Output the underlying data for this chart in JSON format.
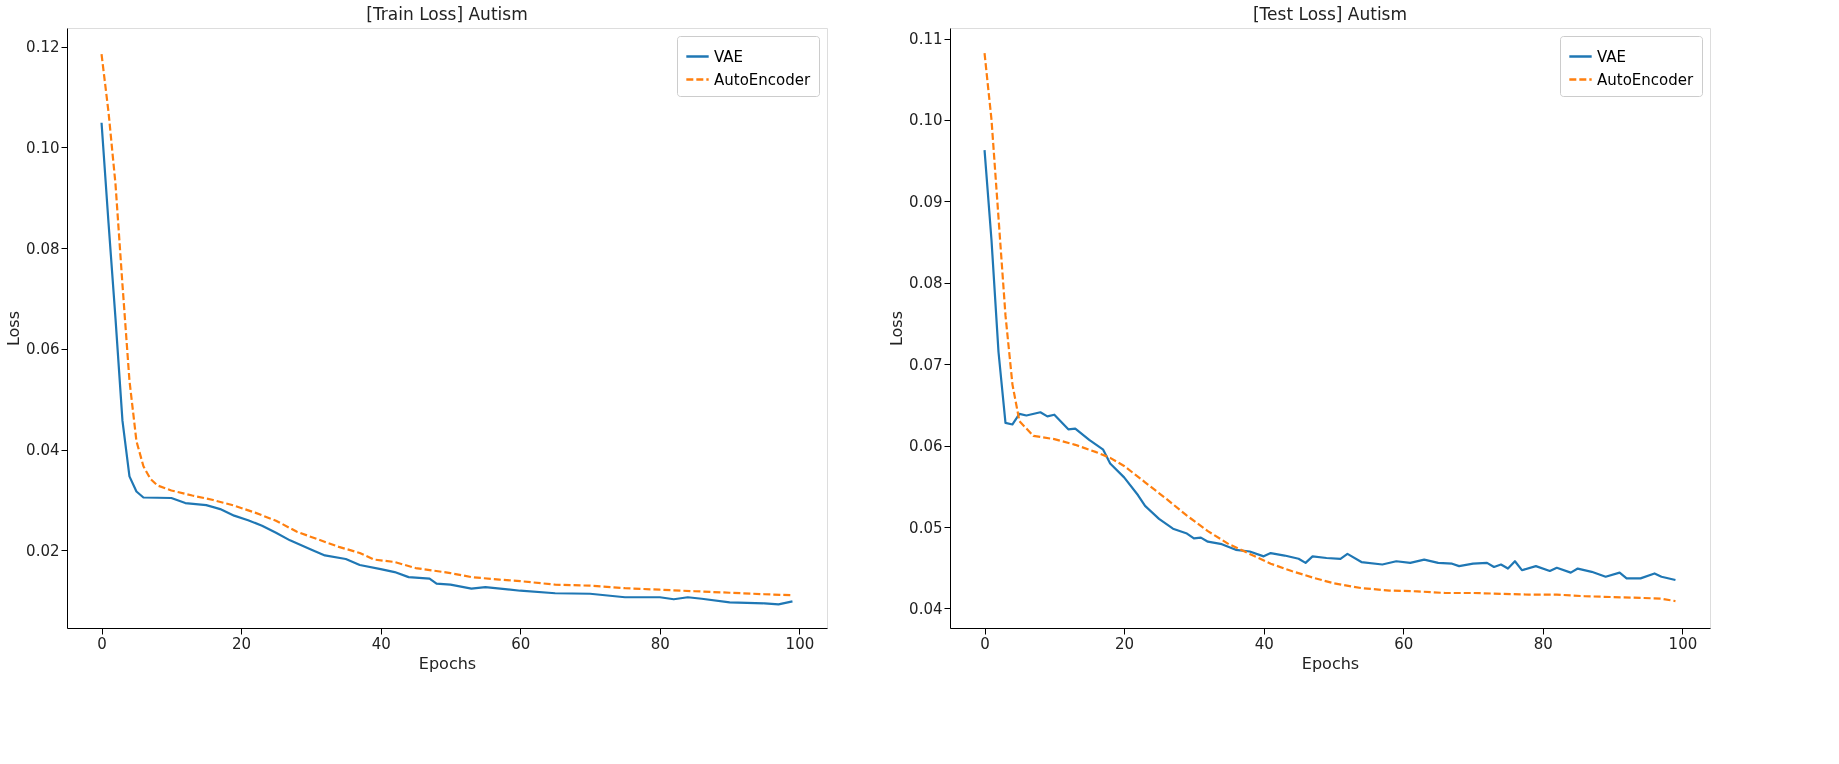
{
  "chart_data": [
    {
      "type": "line",
      "title": "[Train Loss] Autism",
      "xlabel": "Epochs",
      "ylabel": "Loss",
      "xlim": [
        -4.95,
        103.95
      ],
      "xticks": [
        0,
        20,
        40,
        60,
        80,
        100
      ],
      "ylim": [
        0.0046,
        0.1237
      ],
      "yticks": [
        0.02,
        0.04,
        0.06,
        0.08,
        {
          "value": 0.1,
          "label": "0.10"
        },
        0.12
      ],
      "grid": false,
      "legend": "top right",
      "series": [
        {
          "name": "VAE",
          "color": "#1f77b4",
          "line_style": "solid",
          "x": [
            0,
            1,
            2,
            3,
            4,
            5,
            6,
            10,
            12,
            15,
            17,
            19,
            21,
            23,
            25,
            27,
            30,
            32,
            35,
            37,
            40,
            42,
            44,
            47,
            48,
            50,
            53,
            55,
            60,
            65,
            70,
            75,
            80,
            82,
            84,
            86,
            90,
            95,
            97,
            99
          ],
          "values": [
            0.1049,
            0.085,
            0.066,
            0.0457,
            0.0347,
            0.0317,
            0.0305,
            0.0304,
            0.0294,
            0.029,
            0.0282,
            0.0269,
            0.026,
            0.0249,
            0.0235,
            0.022,
            0.0202,
            0.019,
            0.0183,
            0.0171,
            0.0163,
            0.0157,
            0.0147,
            0.0144,
            0.0134,
            0.0132,
            0.0124,
            0.0127,
            0.012,
            0.0115,
            0.0114,
            0.0107,
            0.0107,
            0.0103,
            0.0107,
            0.0104,
            0.0097,
            0.0095,
            0.0093,
            0.0099
          ]
        },
        {
          "name": "AutoEncoder",
          "color": "#ff7f0e",
          "line_style": "dashed",
          "x": [
            0,
            1,
            2,
            3,
            4,
            5,
            6,
            7,
            8,
            10,
            13,
            16,
            19,
            22,
            25,
            28,
            31,
            34,
            37,
            39,
            42,
            45,
            50,
            53,
            57,
            60,
            65,
            70,
            75,
            80,
            85,
            90,
            95,
            99
          ],
          "values": [
            0.1185,
            0.107,
            0.0927,
            0.0727,
            0.0537,
            0.0417,
            0.0367,
            0.0342,
            0.0329,
            0.0319,
            0.0309,
            0.03,
            0.0289,
            0.0275,
            0.0259,
            0.0237,
            0.0222,
            0.0207,
            0.0195,
            0.0182,
            0.0177,
            0.0165,
            0.0155,
            0.0147,
            0.0142,
            0.0139,
            0.0132,
            0.013,
            0.0125,
            0.0122,
            0.0119,
            0.0116,
            0.0113,
            0.0111
          ]
        }
      ]
    },
    {
      "type": "line",
      "title": "[Test Loss] Autism",
      "xlabel": "Epochs",
      "ylabel": "Loss",
      "xlim": [
        -4.95,
        103.95
      ],
      "xticks": [
        0,
        20,
        40,
        60,
        80,
        100
      ],
      "ylim": [
        0.0376,
        0.1113
      ],
      "yticks": [
        0.04,
        0.05,
        0.06,
        0.07,
        0.08,
        0.09,
        {
          "value": 0.1,
          "label": "0.10"
        },
        0.11
      ],
      "grid": false,
      "legend": "top right",
      "series": [
        {
          "name": "VAE",
          "color": "#1f77b4",
          "line_style": "solid",
          "x": [
            0,
            1,
            2,
            3,
            4,
            5,
            6,
            8,
            9,
            10,
            12,
            13,
            15,
            17,
            18,
            20,
            22,
            23,
            25,
            27,
            29,
            30,
            31,
            32,
            34,
            36,
            38,
            40,
            41,
            43,
            45,
            46,
            47,
            49,
            51,
            52,
            54,
            57,
            59,
            61,
            63,
            65,
            67,
            68,
            70,
            72,
            73,
            74,
            75,
            76,
            77,
            79,
            81,
            82,
            84,
            85,
            87,
            89,
            91,
            92,
            94,
            96,
            97,
            99
          ],
          "values": [
            0.0963,
            0.0852,
            0.0715,
            0.0628,
            0.0626,
            0.0639,
            0.0637,
            0.0641,
            0.0636,
            0.0638,
            0.062,
            0.0621,
            0.0607,
            0.0595,
            0.0578,
            0.0561,
            0.0539,
            0.0526,
            0.051,
            0.0498,
            0.0492,
            0.0486,
            0.0487,
            0.0482,
            0.0479,
            0.0472,
            0.047,
            0.0464,
            0.0468,
            0.0465,
            0.0461,
            0.0456,
            0.0464,
            0.0462,
            0.0461,
            0.0467,
            0.0457,
            0.0454,
            0.0458,
            0.0456,
            0.046,
            0.0456,
            0.0455,
            0.0452,
            0.0455,
            0.0456,
            0.0451,
            0.0454,
            0.0449,
            0.0458,
            0.0447,
            0.0452,
            0.0446,
            0.045,
            0.0444,
            0.0449,
            0.0445,
            0.0439,
            0.0444,
            0.0437,
            0.0437,
            0.0443,
            0.0439,
            0.0435
          ]
        },
        {
          "name": "AutoEncoder",
          "color": "#ff7f0e",
          "line_style": "dashed",
          "x": [
            0,
            1,
            2,
            3,
            4,
            5,
            6,
            7,
            10,
            13,
            16,
            18,
            20,
            23,
            26,
            29,
            32,
            35,
            38,
            41,
            44,
            47,
            50,
            54,
            58,
            62,
            66,
            70,
            74,
            78,
            82,
            86,
            90,
            94,
            97,
            99
          ],
          "values": [
            0.1082,
            0.1,
            0.088,
            0.076,
            0.0675,
            0.063,
            0.0621,
            0.0612,
            0.0608,
            0.0601,
            0.0592,
            0.0585,
            0.0575,
            0.0555,
            0.0535,
            0.0514,
            0.0495,
            0.0479,
            0.0467,
            0.0455,
            0.0446,
            0.0438,
            0.0431,
            0.0425,
            0.0422,
            0.0421,
            0.0419,
            0.0419,
            0.0418,
            0.0417,
            0.0417,
            0.0415,
            0.0414,
            0.0413,
            0.0412,
            0.0409
          ]
        }
      ]
    }
  ]
}
